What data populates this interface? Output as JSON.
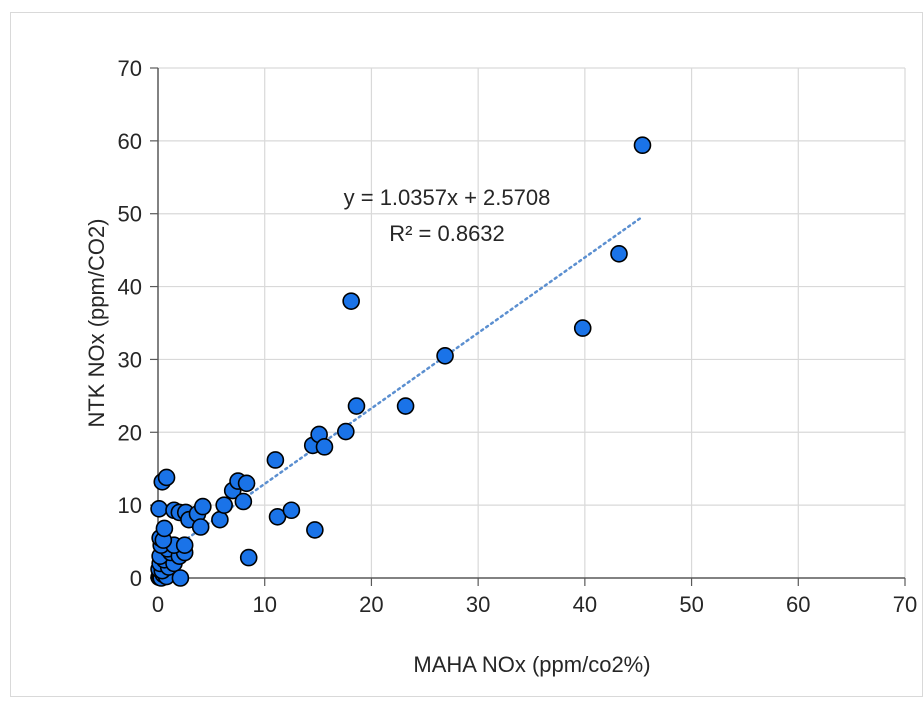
{
  "chart_data": {
    "type": "scatter",
    "xlabel": "MAHA NOx (ppm/co2%)",
    "ylabel": "NTK NOx (ppm/CO2)",
    "xlim": [
      0,
      70
    ],
    "ylim": [
      0,
      70
    ],
    "xticks": [
      "0",
      "10",
      "20",
      "30",
      "40",
      "50",
      "60",
      "70"
    ],
    "yticks": [
      "0",
      "10",
      "20",
      "30",
      "40",
      "50",
      "60",
      "70"
    ],
    "grid": true,
    "legend": "none",
    "colors": {
      "marker_fill": "#1a73e8",
      "marker_stroke": "#000000",
      "trend": "#5b8fd0",
      "grid": "#d9d9d9"
    },
    "points": [
      [
        0.1,
        0.1
      ],
      [
        0.2,
        0.3
      ],
      [
        0.3,
        0.0
      ],
      [
        0.5,
        0.5
      ],
      [
        0.8,
        0.2
      ],
      [
        0.1,
        1.2
      ],
      [
        0.4,
        1.0
      ],
      [
        0.2,
        2.0
      ],
      [
        1.0,
        1.5
      ],
      [
        0.6,
        2.5
      ],
      [
        1.5,
        2.0
      ],
      [
        0.2,
        3.0
      ],
      [
        1.2,
        3.5
      ],
      [
        0.9,
        4.0
      ],
      [
        2.0,
        3.0
      ],
      [
        2.5,
        3.5
      ],
      [
        0.3,
        4.5
      ],
      [
        1.5,
        4.5
      ],
      [
        2.5,
        4.5
      ],
      [
        0.2,
        5.5
      ],
      [
        0.5,
        5.2
      ],
      [
        0.6,
        6.8
      ],
      [
        2.1,
        0.0
      ],
      [
        0.1,
        9.5
      ],
      [
        1.5,
        9.3
      ],
      [
        2.0,
        9.0
      ],
      [
        2.6,
        9.0
      ],
      [
        2.9,
        8.0
      ],
      [
        3.7,
        8.8
      ],
      [
        4.0,
        7.0
      ],
      [
        4.2,
        9.8
      ],
      [
        5.8,
        8.0
      ],
      [
        6.2,
        10.0
      ],
      [
        7.0,
        12.0
      ],
      [
        7.5,
        13.3
      ],
      [
        8.0,
        10.5
      ],
      [
        8.3,
        13.0
      ],
      [
        0.4,
        13.2
      ],
      [
        0.8,
        13.8
      ],
      [
        8.5,
        2.8
      ],
      [
        11.0,
        16.2
      ],
      [
        11.2,
        8.4
      ],
      [
        12.5,
        9.3
      ],
      [
        14.5,
        18.2
      ],
      [
        14.7,
        6.6
      ],
      [
        15.1,
        19.7
      ],
      [
        15.6,
        18.0
      ],
      [
        17.6,
        20.1
      ],
      [
        18.1,
        38.0
      ],
      [
        18.6,
        23.6
      ],
      [
        23.2,
        23.6
      ],
      [
        26.9,
        30.5
      ],
      [
        39.8,
        34.3
      ],
      [
        43.2,
        44.5
      ],
      [
        45.4,
        59.4
      ]
    ],
    "trendline": {
      "equation": "y = 1.0357x + 2.5708",
      "r_squared": "R² = 0.8632",
      "slope": 1.0357,
      "intercept": 2.5708,
      "x_range": [
        0,
        45.4
      ],
      "style": "dotted"
    }
  }
}
